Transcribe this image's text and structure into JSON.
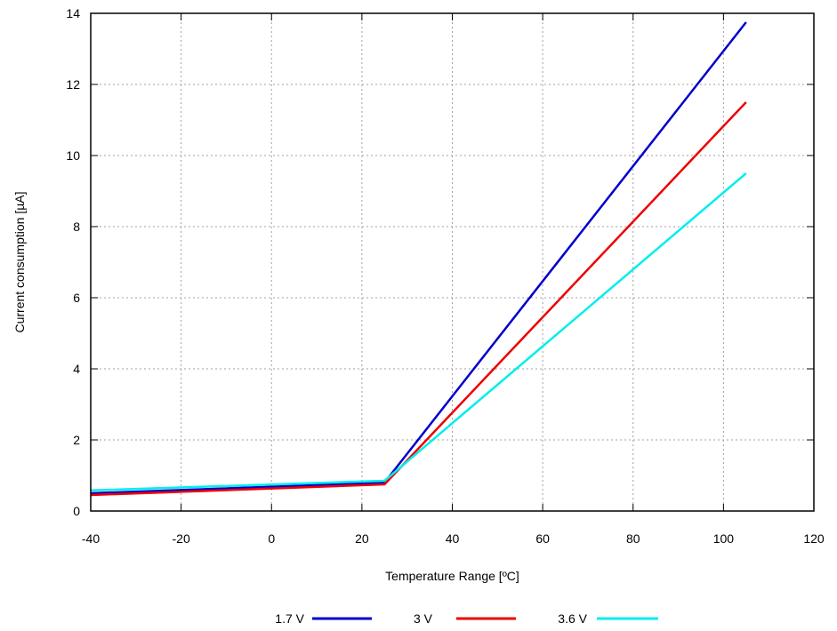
{
  "chart_data": {
    "type": "line",
    "xlabel": "Temperature Range [ºC]",
    "ylabel": "Current consumption [µA]",
    "xlim": [
      -40,
      120
    ],
    "ylim": [
      0,
      14
    ],
    "xticks": [
      -40,
      -20,
      0,
      20,
      40,
      60,
      80,
      100,
      120
    ],
    "yticks": [
      0,
      2,
      4,
      6,
      8,
      10,
      12,
      14
    ],
    "xtick_labels": [
      "-40",
      "-20",
      "0",
      "20",
      "40",
      "60",
      "80",
      "100",
      "120"
    ],
    "ytick_labels": [
      "0",
      "2",
      "4",
      "6",
      "8",
      "10",
      "12",
      "14"
    ],
    "grid": true,
    "legend_position": "bottom",
    "series": [
      {
        "name": "1.7 V",
        "color": "#0000cc",
        "x": [
          -40,
          25,
          105
        ],
        "y": [
          0.5,
          0.8,
          13.75
        ]
      },
      {
        "name": "3 V",
        "color": "#ee0000",
        "x": [
          -40,
          25,
          105
        ],
        "y": [
          0.45,
          0.75,
          11.5
        ]
      },
      {
        "name": "3.6 V",
        "color": "#00eeee",
        "x": [
          -40,
          25,
          105
        ],
        "y": [
          0.58,
          0.85,
          9.5
        ]
      }
    ]
  }
}
